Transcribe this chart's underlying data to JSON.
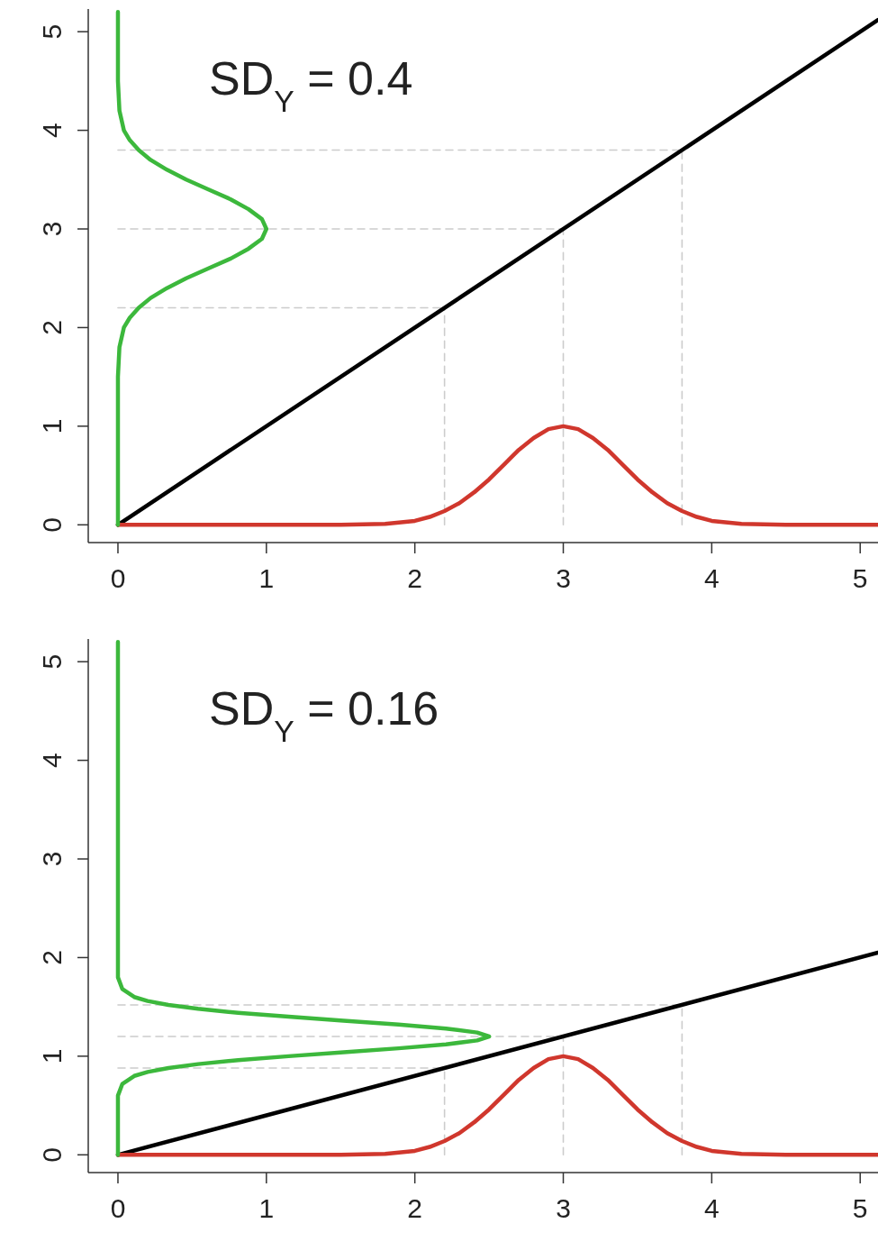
{
  "chart_data": [
    {
      "type": "line",
      "title": "SD$_{Y}$ = 0.4",
      "xlim": [
        -0.2,
        5.12
      ],
      "ylim": [
        -0.18,
        5.23
      ],
      "xticks": [
        0,
        1,
        2,
        3,
        4,
        5
      ],
      "yticks": [
        0,
        1,
        2,
        3,
        4,
        5
      ],
      "series": [
        {
          "color": "#cccccc",
          "line_style": "dashed",
          "x": [
            2.2,
            2.2
          ],
          "values": [
            0,
            2.2
          ]
        },
        {
          "color": "#cccccc",
          "line_style": "dashed",
          "x": [
            3,
            3
          ],
          "values": [
            0,
            3
          ]
        },
        {
          "color": "#cccccc",
          "line_style": "dashed",
          "x": [
            3.8,
            3.8
          ],
          "values": [
            0,
            3.8
          ]
        },
        {
          "color": "#cccccc",
          "line_style": "dashed",
          "x": [
            0,
            2.2
          ],
          "values": [
            2.2,
            2.2
          ]
        },
        {
          "color": "#cccccc",
          "line_style": "dashed",
          "x": [
            0,
            3
          ],
          "values": [
            3,
            3
          ]
        },
        {
          "color": "#cccccc",
          "line_style": "dashed",
          "x": [
            0,
            3.8
          ],
          "values": [
            3.8,
            3.8
          ]
        },
        {
          "color": "#000000",
          "line_style": "solid",
          "x": [
            0,
            5.12
          ],
          "values": [
            0,
            5.12
          ]
        },
        {
          "color": "#d0372d",
          "line_style": "solid",
          "x": [
            0,
            1,
            1.5,
            1.8,
            2,
            2.1,
            2.2,
            2.3,
            2.4,
            2.5,
            2.6,
            2.7,
            2.8,
            2.9,
            3,
            3.1,
            3.2,
            3.3,
            3.4,
            3.5,
            3.6,
            3.7,
            3.8,
            3.9,
            4,
            4.2,
            4.5,
            5,
            5.12
          ],
          "values": [
            0,
            0,
            0,
            0.01,
            0.04,
            0.08,
            0.14,
            0.22,
            0.33,
            0.46,
            0.61,
            0.76,
            0.88,
            0.97,
            1,
            0.97,
            0.88,
            0.76,
            0.61,
            0.46,
            0.33,
            0.22,
            0.14,
            0.08,
            0.04,
            0.01,
            0,
            0,
            0
          ]
        },
        {
          "color": "#3cb83c",
          "line_style": "solid",
          "x": [
            0,
            0,
            0,
            0.01,
            0.04,
            0.08,
            0.14,
            0.22,
            0.33,
            0.46,
            0.61,
            0.76,
            0.88,
            0.97,
            1,
            0.97,
            0.88,
            0.76,
            0.61,
            0.46,
            0.33,
            0.22,
            0.14,
            0.08,
            0.04,
            0.01,
            0,
            0,
            0
          ],
          "values": [
            0,
            1,
            1.5,
            1.8,
            2,
            2.1,
            2.2,
            2.3,
            2.4,
            2.5,
            2.6,
            2.7,
            2.8,
            2.9,
            3,
            3.1,
            3.2,
            3.3,
            3.4,
            3.5,
            3.6,
            3.7,
            3.8,
            3.9,
            4,
            4.2,
            4.5,
            5,
            5.2
          ]
        }
      ]
    },
    {
      "type": "line",
      "title": "SD$_{Y}$ = 0.16",
      "xlim": [
        -0.2,
        5.12
      ],
      "ylim": [
        -0.18,
        5.23
      ],
      "xticks": [
        0,
        1,
        2,
        3,
        4,
        5
      ],
      "yticks": [
        0,
        1,
        2,
        3,
        4,
        5
      ],
      "series": [
        {
          "color": "#cccccc",
          "line_style": "dashed",
          "x": [
            2.2,
            2.2
          ],
          "values": [
            0,
            0.88
          ]
        },
        {
          "color": "#cccccc",
          "line_style": "dashed",
          "x": [
            3,
            3
          ],
          "values": [
            0,
            1.2
          ]
        },
        {
          "color": "#cccccc",
          "line_style": "dashed",
          "x": [
            3.8,
            3.8
          ],
          "values": [
            0,
            1.52
          ]
        },
        {
          "color": "#cccccc",
          "line_style": "dashed",
          "x": [
            0,
            2.2
          ],
          "values": [
            0.88,
            0.88
          ]
        },
        {
          "color": "#cccccc",
          "line_style": "dashed",
          "x": [
            0,
            3
          ],
          "values": [
            1.2,
            1.2
          ]
        },
        {
          "color": "#cccccc",
          "line_style": "dashed",
          "x": [
            0,
            3.8
          ],
          "values": [
            1.52,
            1.52
          ]
        },
        {
          "color": "#000000",
          "line_style": "solid",
          "x": [
            0,
            5.12
          ],
          "values": [
            0,
            2.05
          ]
        },
        {
          "color": "#d0372d",
          "line_style": "solid",
          "x": [
            0,
            1,
            1.5,
            1.8,
            2,
            2.1,
            2.2,
            2.3,
            2.4,
            2.5,
            2.6,
            2.7,
            2.8,
            2.9,
            3,
            3.1,
            3.2,
            3.3,
            3.4,
            3.5,
            3.6,
            3.7,
            3.8,
            3.9,
            4,
            4.2,
            4.5,
            5,
            5.12
          ],
          "values": [
            0,
            0,
            0,
            0.01,
            0.04,
            0.08,
            0.14,
            0.22,
            0.33,
            0.46,
            0.61,
            0.76,
            0.88,
            0.97,
            1,
            0.97,
            0.88,
            0.76,
            0.61,
            0.46,
            0.33,
            0.22,
            0.14,
            0.08,
            0.04,
            0.01,
            0,
            0,
            0
          ]
        },
        {
          "color": "#3cb83c",
          "line_style": "solid",
          "x": [
            0,
            0,
            0,
            0.03,
            0.11,
            0.2,
            0.34,
            0.54,
            0.81,
            1.15,
            1.52,
            1.89,
            2.21,
            2.42,
            2.5,
            2.42,
            2.21,
            1.89,
            1.52,
            1.15,
            0.81,
            0.54,
            0.34,
            0.2,
            0.11,
            0.03,
            0,
            0,
            0
          ],
          "values": [
            0,
            0.5,
            0.6,
            0.72,
            0.8,
            0.84,
            0.88,
            0.92,
            0.96,
            1,
            1.04,
            1.08,
            1.12,
            1.16,
            1.2,
            1.24,
            1.28,
            1.32,
            1.36,
            1.4,
            1.44,
            1.48,
            1.52,
            1.56,
            1.6,
            1.68,
            1.8,
            2.5,
            5.2
          ]
        }
      ]
    }
  ]
}
